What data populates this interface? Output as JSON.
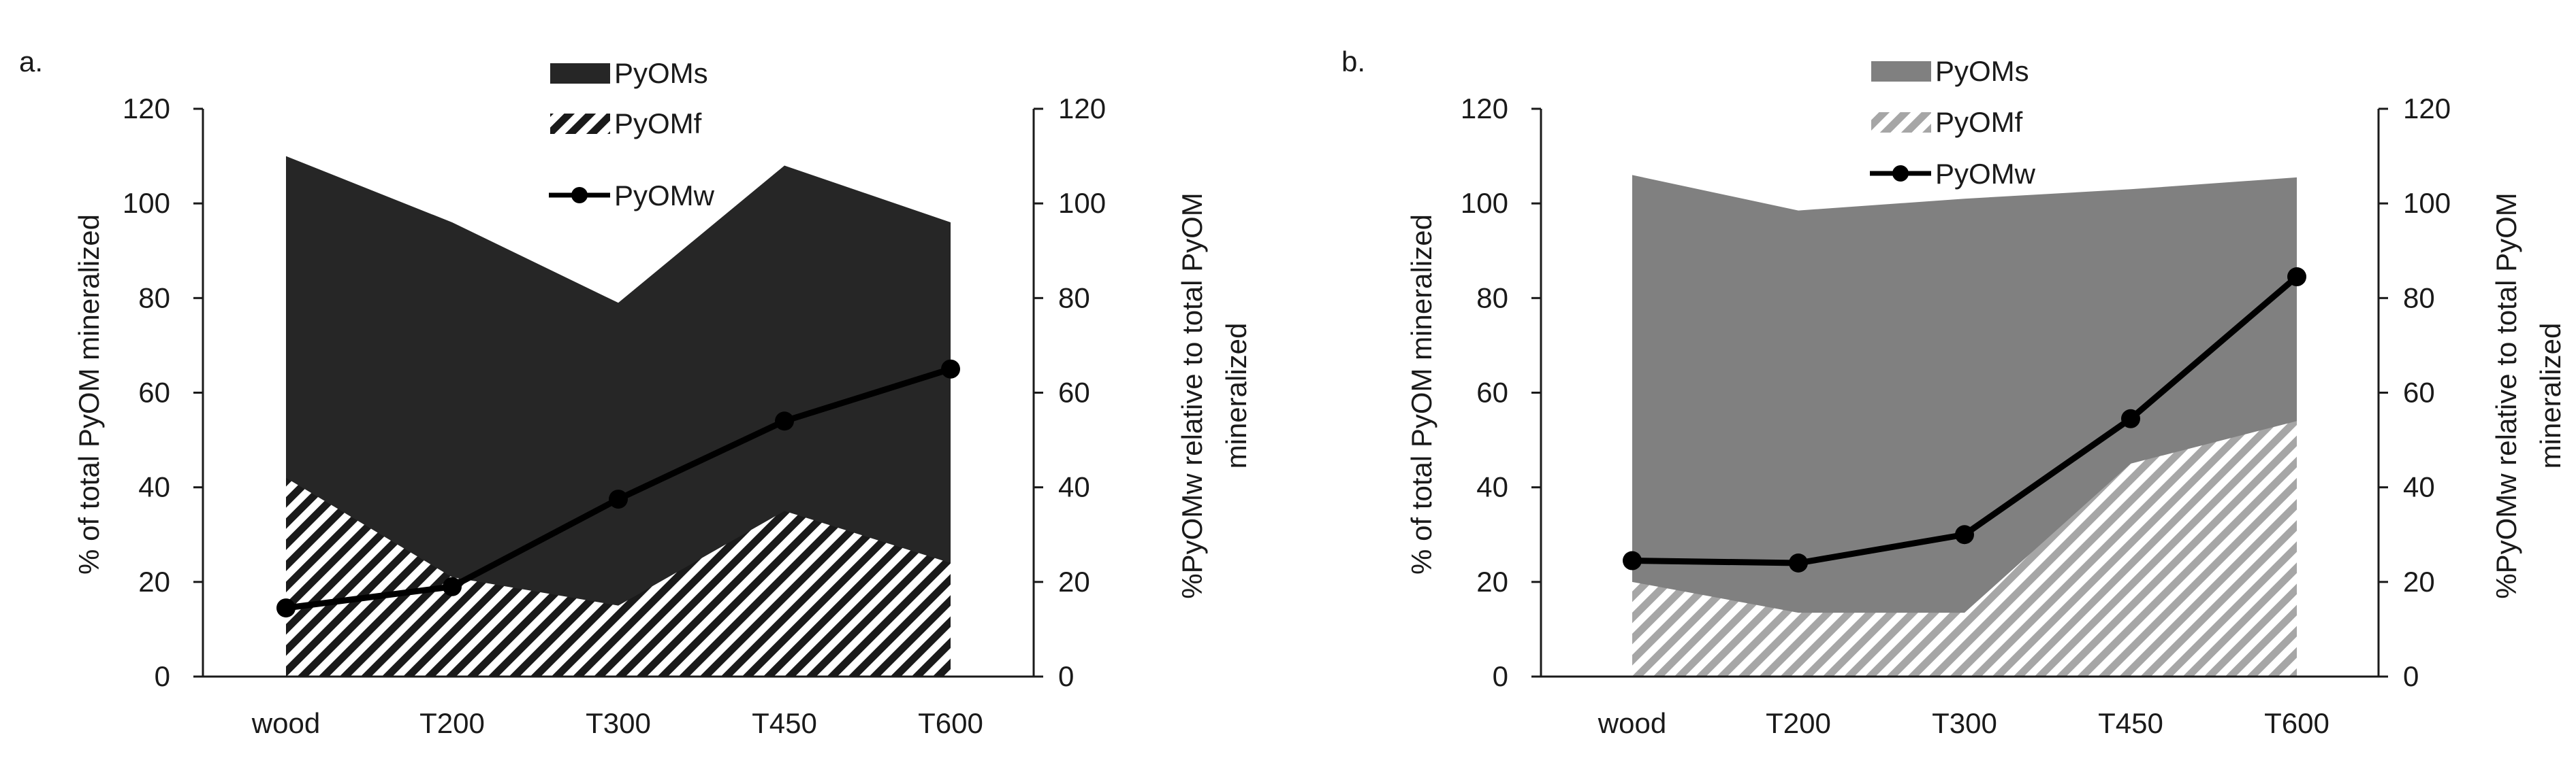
{
  "colors": {
    "axis": "#1a1a1a",
    "line": "#000000",
    "panel_a_pyoms": "#262626",
    "panel_a_pyomf_hatch": "#1a1a1a",
    "panel_b_pyoms": "#808080",
    "panel_b_pyomf_hatch": "#a6a6a6"
  },
  "chart_data": [
    {
      "panel_label": "a.",
      "type": "area",
      "categories": [
        "wood",
        "T200",
        "T300",
        "T450",
        "T600"
      ],
      "ylabel": "% of total PyOM mineralized",
      "ylabel2": [
        "%PyOMw relative to total PyOM",
        "mineralized"
      ],
      "ylim": [
        0,
        120
      ],
      "y2lim": [
        0,
        120
      ],
      "yticks": [
        0,
        20,
        40,
        60,
        80,
        100,
        120
      ],
      "y2ticks": [
        0,
        20,
        40,
        60,
        80,
        100,
        120
      ],
      "legend_position": "top-center",
      "grid": false,
      "series": [
        {
          "name": "PyOMs",
          "kind": "area",
          "style": "solid",
          "values": [
            110,
            96,
            79,
            108,
            96
          ]
        },
        {
          "name": "PyOMf",
          "kind": "area",
          "style": "hatched",
          "values": [
            42,
            21,
            15,
            35,
            24
          ]
        },
        {
          "name": "PyOMw",
          "kind": "line",
          "axis": "right",
          "marker": "circle",
          "values": [
            14.5,
            19,
            37.5,
            54,
            65
          ]
        }
      ]
    },
    {
      "panel_label": "b.",
      "type": "area",
      "categories": [
        "wood",
        "T200",
        "T300",
        "T450",
        "T600"
      ],
      "ylabel": "% of total PyOM mineralized",
      "ylabel2": [
        "%PyOMw relative to total PyOM",
        "mineralized"
      ],
      "ylim": [
        0,
        120
      ],
      "y2lim": [
        0,
        120
      ],
      "yticks": [
        0,
        20,
        40,
        60,
        80,
        100,
        120
      ],
      "y2ticks": [
        0,
        20,
        40,
        60,
        80,
        100,
        120
      ],
      "legend_position": "top-center",
      "grid": false,
      "series": [
        {
          "name": "PyOMs",
          "kind": "area",
          "style": "solid",
          "values": [
            106,
            98.5,
            101,
            103,
            105.5
          ]
        },
        {
          "name": "PyOMf",
          "kind": "area",
          "style": "hatched",
          "values": [
            20,
            13.5,
            13.5,
            45,
            54
          ]
        },
        {
          "name": "PyOMw",
          "kind": "line",
          "axis": "right",
          "marker": "circle",
          "values": [
            24.5,
            24,
            30,
            54.5,
            84.5
          ]
        }
      ]
    }
  ]
}
